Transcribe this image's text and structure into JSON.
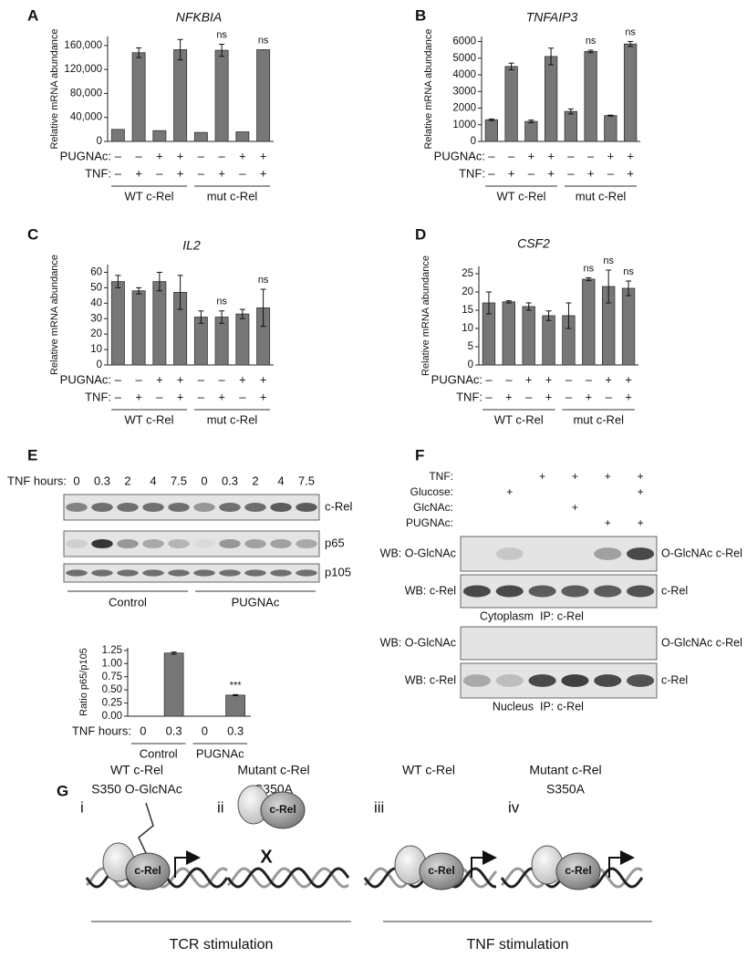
{
  "panel_letters": [
    "A",
    "B",
    "C",
    "D",
    "E",
    "F",
    "G"
  ],
  "chart_data": [
    {
      "type": "bar",
      "title": "NFKBIA",
      "y_label": "Relative mRNA abundance",
      "color": "#777777",
      "values": [
        20000,
        148000,
        18000,
        153000,
        15000,
        152000,
        16000,
        153000
      ],
      "errors": [
        0,
        8000,
        0,
        17000,
        0,
        10000,
        0,
        0
      ],
      "bar_labels": [
        null,
        null,
        null,
        null,
        null,
        "ns",
        null,
        "ns"
      ],
      "ylim": [
        0,
        175000
      ],
      "yticks": [
        0,
        {
          "value": 40000,
          "label": "40,000"
        },
        {
          "value": 80000,
          "label": "80,000"
        },
        {
          "value": 120000,
          "label": "120,000"
        },
        {
          "value": 160000,
          "label": "160,000"
        }
      ],
      "conditions": [
        {
          "label": "PUGNAc:",
          "marks": [
            "–",
            "–",
            "+",
            "+",
            "–",
            "–",
            "+",
            "+"
          ]
        },
        {
          "label": "TNF:",
          "marks": [
            "–",
            "+",
            "–",
            "+",
            "–",
            "+",
            "–",
            "+"
          ]
        }
      ],
      "groups": [
        "WT c-Rel",
        "mut c-Rel"
      ]
    },
    {
      "type": "bar",
      "title": "TNFAIP3",
      "y_label": "Relative mRNA abundance",
      "color": "#777777",
      "values": [
        1300,
        4500,
        1200,
        5100,
        1800,
        5400,
        1550,
        5850
      ],
      "errors": [
        50,
        200,
        80,
        500,
        150,
        80,
        30,
        150
      ],
      "bar_labels": [
        null,
        null,
        null,
        null,
        null,
        "ns",
        null,
        "ns"
      ],
      "ylim": [
        0,
        6300
      ],
      "yticks": [
        0,
        1000,
        2000,
        3000,
        4000,
        5000,
        6000
      ],
      "conditions": [
        {
          "label": "PUGNAc:",
          "marks": [
            "–",
            "–",
            "+",
            "+",
            "–",
            "–",
            "+",
            "+"
          ]
        },
        {
          "label": "TNF:",
          "marks": [
            "–",
            "+",
            "–",
            "+",
            "–",
            "+",
            "–",
            "+"
          ]
        }
      ],
      "groups": [
        "WT c-Rel",
        "mut c-Rel"
      ]
    },
    {
      "type": "bar",
      "title": "IL2",
      "y_label": "Relative mRNA abundance",
      "color": "#777777",
      "values": [
        54,
        48,
        54,
        47,
        31,
        31,
        33,
        37
      ],
      "errors": [
        4,
        2,
        6,
        11,
        4,
        4,
        3,
        12
      ],
      "bar_labels": [
        null,
        null,
        null,
        null,
        null,
        "ns",
        null,
        "ns"
      ],
      "ylim": [
        0,
        65
      ],
      "yticks": [
        0,
        10,
        20,
        30,
        40,
        50,
        60
      ],
      "conditions": [
        {
          "label": "PUGNAc:",
          "marks": [
            "–",
            "–",
            "+",
            "+",
            "–",
            "–",
            "+",
            "+"
          ]
        },
        {
          "label": "TNF:",
          "marks": [
            "–",
            "+",
            "–",
            "+",
            "–",
            "+",
            "–",
            "+"
          ]
        }
      ],
      "groups": [
        "WT c-Rel",
        "mut c-Rel"
      ]
    },
    {
      "type": "bar",
      "title": "CSF2",
      "y_label": "Relative mRNA abundance",
      "color": "#777777",
      "values": [
        17,
        17.3,
        16,
        13.5,
        13.5,
        23.5,
        21.5,
        21
      ],
      "errors": [
        3,
        0.3,
        1,
        1.3,
        3.5,
        0.4,
        4.5,
        2
      ],
      "bar_labels": [
        null,
        null,
        null,
        null,
        null,
        "ns",
        "ns",
        "ns"
      ],
      "ylim": [
        0,
        27
      ],
      "yticks": [
        0,
        5,
        10,
        15,
        20,
        25
      ],
      "conditions": [
        {
          "label": "PUGNAc:",
          "marks": [
            "–",
            "–",
            "+",
            "+",
            "–",
            "–",
            "+",
            "+"
          ]
        },
        {
          "label": "TNF:",
          "marks": [
            "–",
            "+",
            "–",
            "+",
            "–",
            "+",
            "–",
            "+"
          ]
        }
      ],
      "groups": [
        "WT c-Rel",
        "mut c-Rel"
      ]
    },
    {
      "type": "bar",
      "y_label": "Ratio p65/p105",
      "color": "#777777",
      "values": [
        0,
        1.2,
        0,
        0.4
      ],
      "errors": [
        0,
        0.02,
        0,
        0.01
      ],
      "bar_labels": [
        null,
        null,
        null,
        "***"
      ],
      "ylim": [
        0,
        1.3
      ],
      "yticks": [
        {
          "value": 0,
          "label": "0.00"
        },
        {
          "value": 0.25,
          "label": "0.25"
        },
        {
          "value": 0.5,
          "label": "0.50"
        },
        {
          "value": 0.75,
          "label": "0.75"
        },
        {
          "value": 1,
          "label": "1.00"
        },
        {
          "value": 1.25,
          "label": "1.25"
        }
      ],
      "conditions": [
        {
          "label": "TNF hours:",
          "marks": [
            "0",
            "0.3",
            "0",
            "0.3"
          ]
        }
      ],
      "groups": [
        "Control",
        "PUGNAc"
      ]
    }
  ],
  "blot_E": {
    "header": "TNF hours:",
    "lanes": [
      "0",
      "0.3",
      "2",
      "4",
      "7.5",
      "0",
      "0.3",
      "2",
      "4",
      "7.5"
    ],
    "bands": [
      "c-Rel",
      "p65",
      "p105"
    ],
    "groups": [
      "Control",
      "PUGNAc"
    ]
  },
  "blot_F": {
    "conditions": [
      {
        "label": "TNF:",
        "marks": [
          null,
          null,
          "+",
          "+",
          "+",
          "+"
        ]
      },
      {
        "label": "Glucose:",
        "marks": [
          null,
          "+",
          null,
          null,
          null,
          "+"
        ]
      },
      {
        "label": "GlcNAc:",
        "marks": [
          null,
          null,
          null,
          "+",
          null,
          null
        ]
      },
      {
        "label": "PUGNAc:",
        "marks": [
          null,
          null,
          null,
          null,
          "+",
          "+"
        ]
      }
    ],
    "sections": [
      {
        "rows": [
          "WB: O-GlcNAc",
          "WB: c-Rel"
        ],
        "right": [
          "O-GlcNAc c-Rel",
          "c-Rel"
        ],
        "caption": [
          "Cytoplasm",
          "IP: c-Rel"
        ]
      },
      {
        "rows": [
          "WB: O-GlcNAc",
          "WB: c-Rel"
        ],
        "right": [
          "O-GlcNAc c-Rel",
          "c-Rel"
        ],
        "caption": [
          "Nucleus",
          "IP: c-Rel"
        ]
      }
    ]
  },
  "diagram": {
    "panels": [
      {
        "numeral": "i",
        "title": [
          "WT c-Rel",
          "S350 O-GlcNAc"
        ],
        "protein": "c-Rel"
      },
      {
        "numeral": "ii",
        "title": [
          "Mutant c-Rel",
          "S350A"
        ],
        "protein": "c-Rel"
      },
      {
        "numeral": "iii",
        "title": [
          "WT c-Rel"
        ],
        "protein": "c-Rel"
      },
      {
        "numeral": "iv",
        "title": [
          "Mutant c-Rel",
          "S350A"
        ],
        "protein": "c-Rel"
      }
    ],
    "blocked": "X",
    "stimuli": [
      "TCR stimulation",
      "TNF stimulation"
    ]
  }
}
